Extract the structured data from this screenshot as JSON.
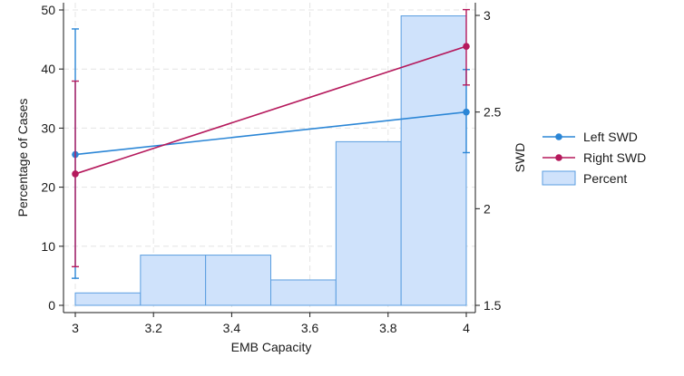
{
  "chart_data": {
    "type": "bar+line",
    "xlabel": "EMB Capacity",
    "ylabel_left": "Percentage of Cases",
    "ylabel_right": "SWD",
    "xlim": [
      3,
      4
    ],
    "ylim_left": [
      0,
      50
    ],
    "ylim_right": [
      1.5,
      3
    ],
    "x_ticks": [
      "3",
      "3.2",
      "3.4",
      "3.6",
      "3.8",
      "4"
    ],
    "y_left_ticks": [
      "0",
      "10",
      "20",
      "30",
      "40",
      "50"
    ],
    "y_right_ticks": [
      "1.5",
      "2",
      "2.5",
      "3"
    ],
    "grid": true,
    "legend_position": "right",
    "histogram": {
      "name": "Percent",
      "bins": [
        {
          "start": 3.0,
          "end": 3.1667,
          "value": 2.1
        },
        {
          "start": 3.1667,
          "end": 3.3333,
          "value": 8.5
        },
        {
          "start": 3.3333,
          "end": 3.5,
          "value": 8.5
        },
        {
          "start": 3.5,
          "end": 3.6667,
          "value": 4.3
        },
        {
          "start": 3.6667,
          "end": 3.8333,
          "value": 27.7
        },
        {
          "start": 3.8333,
          "end": 4.0,
          "value": 49.0
        }
      ],
      "color": "#cfe2fb",
      "edge_color": "#5b9ee0"
    },
    "series": [
      {
        "name": "Left SWD",
        "color": "#2b86d6",
        "points": [
          {
            "x": 3,
            "y": 2.28,
            "ci": [
              1.64,
              2.93
            ]
          },
          {
            "x": 4,
            "y": 2.5,
            "ci": [
              2.29,
              2.72
            ]
          }
        ]
      },
      {
        "name": "Right SWD",
        "color": "#b5195c",
        "points": [
          {
            "x": 3,
            "y": 2.18,
            "ci": [
              1.7,
              2.66
            ]
          },
          {
            "x": 4,
            "y": 2.84,
            "ci": [
              2.64,
              3.03
            ]
          }
        ]
      }
    ]
  }
}
